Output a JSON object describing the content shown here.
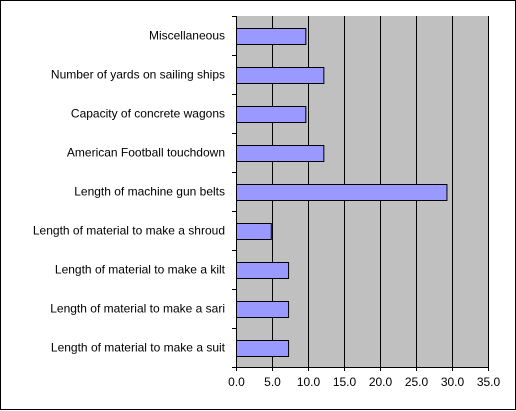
{
  "chart_data": {
    "type": "bar",
    "orientation": "horizontal",
    "categories": [
      "Miscellaneous",
      "Number of yards on sailing ships",
      "Capacity of concrete wagons",
      "American Football touchdown",
      "Length of machine gun belts",
      "Length of material to make a shroud",
      "Length of material to make a kilt",
      "Length of material to make a sari",
      "Length of material to make a suit"
    ],
    "values": [
      9.7,
      12.2,
      9.7,
      12.2,
      29.3,
      4.9,
      7.3,
      7.3,
      7.3
    ],
    "xlim": [
      0,
      35
    ],
    "x_ticks": [
      "0.0",
      "5.0",
      "10.0",
      "15.0",
      "20.0",
      "25.0",
      "30.0",
      "35.0"
    ],
    "grid": true,
    "legend": "none",
    "colors": {
      "bar_fill": "#9999ff",
      "bar_stroke": "#000000",
      "plot_background": "#c0c0c0",
      "gridline": "#000000"
    }
  }
}
